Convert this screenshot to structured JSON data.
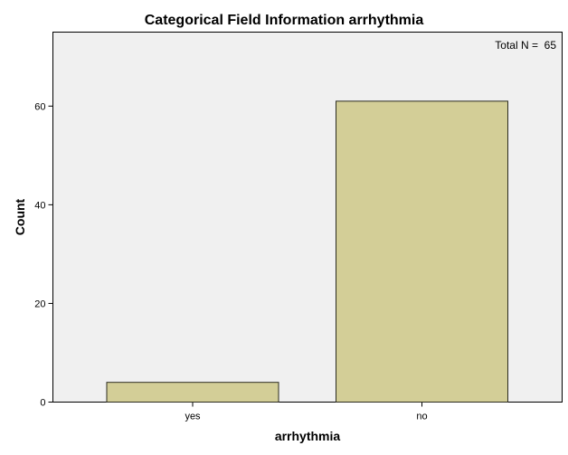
{
  "chart_data": {
    "type": "bar",
    "title": "Categorical Field Information arrhythmia",
    "xlabel": "arrhythmia",
    "ylabel": "Count",
    "categories": [
      "yes",
      "no"
    ],
    "values": [
      4,
      61
    ],
    "ylim": [
      0,
      75
    ],
    "yticks": [
      0,
      20,
      40,
      60
    ],
    "annotation": "Total N =  65",
    "grid": false,
    "legend": "none",
    "colors": {
      "bar_fill": "#d3ce97",
      "bar_stroke": "#2b2b1f",
      "plot_background": "#f0f0f0",
      "plot_border": "#000000"
    }
  }
}
